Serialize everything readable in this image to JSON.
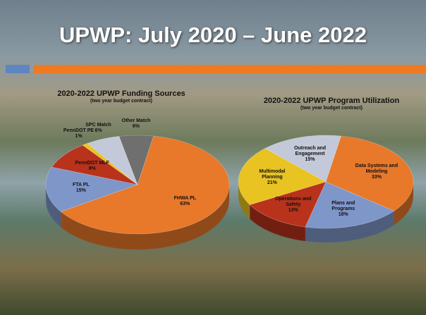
{
  "slide_title": "UPWP: July 2020 – June 2022",
  "chart_data": [
    {
      "type": "pie",
      "title": "2020-2022 UPWP Funding Sources",
      "subtitle": "(two year budget contract)",
      "categories": [
        "FHWA PL",
        "FTA PL",
        "PennDOT MLF",
        "PennDOT PE",
        "SPC Match",
        "Other Match"
      ],
      "values": [
        63,
        15,
        9,
        1,
        6,
        6
      ],
      "value_labels": [
        "63%",
        "15%",
        "9%",
        "1%",
        "6%",
        "6%"
      ],
      "colors": [
        "#e8782a",
        "#7f96c9",
        "#b8321c",
        "#e9c322",
        "#c3c9d8",
        "#6f6f6f"
      ]
    },
    {
      "type": "pie",
      "title": "2020-2022 UPWP Program Utilization",
      "subtitle": "(two year budget contract)",
      "categories": [
        "Data Systems and Modeling",
        "Plans and Programs",
        "Operations and Safety",
        "Multimodal Planning",
        "Outreach and Engagement"
      ],
      "values": [
        33,
        18,
        13,
        21,
        15
      ],
      "value_labels": [
        "33%",
        "18%",
        "13%",
        "21%",
        "15%"
      ],
      "colors": [
        "#e8782a",
        "#7f96c9",
        "#b8321c",
        "#e9c322",
        "#c3c9d8"
      ]
    }
  ]
}
